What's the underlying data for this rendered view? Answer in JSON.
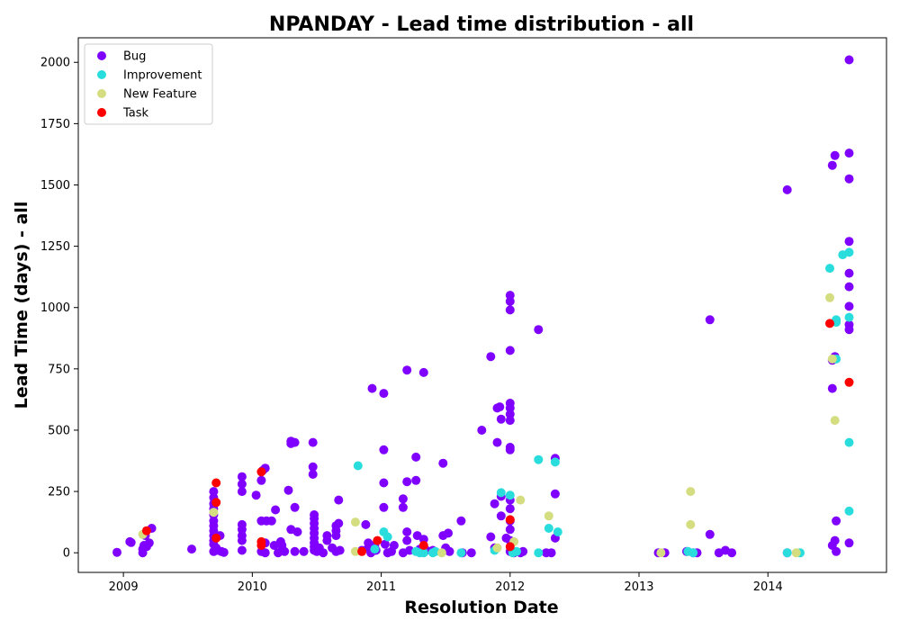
{
  "chart_data": {
    "type": "scatter",
    "title": "NPANDAY - Lead time distribution - all",
    "xlabel": "Resolution Date",
    "ylabel": "Lead Time (days) - all",
    "xlim": [
      2008.65,
      2014.92
    ],
    "ylim": [
      -80,
      2100
    ],
    "xticks": [
      2009,
      2010,
      2011,
      2012,
      2013,
      2014
    ],
    "yticks": [
      0,
      250,
      500,
      750,
      1000,
      1250,
      1500,
      1750,
      2000
    ],
    "grid": false,
    "legend_position": "top-left",
    "series": [
      {
        "name": "Bug",
        "color": "#8000ff",
        "points": [
          [
            2008.95,
            2
          ],
          [
            2009.05,
            45
          ],
          [
            2009.06,
            42
          ],
          [
            2009.15,
            15
          ],
          [
            2009.15,
            0
          ],
          [
            2009.16,
            30
          ],
          [
            2009.17,
            70
          ],
          [
            2009.18,
            25
          ],
          [
            2009.2,
            40
          ],
          [
            2009.22,
            100
          ],
          [
            2009.53,
            15
          ],
          [
            2009.7,
            250
          ],
          [
            2009.7,
            225
          ],
          [
            2009.7,
            200
          ],
          [
            2009.7,
            180
          ],
          [
            2009.7,
            155
          ],
          [
            2009.7,
            130
          ],
          [
            2009.7,
            110
          ],
          [
            2009.7,
            90
          ],
          [
            2009.7,
            70
          ],
          [
            2009.7,
            50
          ],
          [
            2009.7,
            35
          ],
          [
            2009.7,
            5
          ],
          [
            2009.72,
            20
          ],
          [
            2009.73,
            10
          ],
          [
            2009.75,
            70
          ],
          [
            2009.76,
            5
          ],
          [
            2009.78,
            2
          ],
          [
            2009.92,
            310
          ],
          [
            2009.92,
            280
          ],
          [
            2009.92,
            250
          ],
          [
            2009.92,
            115
          ],
          [
            2009.92,
            95
          ],
          [
            2009.92,
            70
          ],
          [
            2009.92,
            50
          ],
          [
            2009.92,
            10
          ],
          [
            2010.03,
            235
          ],
          [
            2010.07,
            295
          ],
          [
            2010.07,
            130
          ],
          [
            2010.07,
            5
          ],
          [
            2010.08,
            335
          ],
          [
            2010.1,
            345
          ],
          [
            2010.1,
            40
          ],
          [
            2010.1,
            0
          ],
          [
            2010.11,
            130
          ],
          [
            2010.15,
            130
          ],
          [
            2010.17,
            30
          ],
          [
            2010.18,
            175
          ],
          [
            2010.2,
            0
          ],
          [
            2010.22,
            45
          ],
          [
            2010.23,
            30
          ],
          [
            2010.23,
            10
          ],
          [
            2010.25,
            5
          ],
          [
            2010.28,
            255
          ],
          [
            2010.3,
            455
          ],
          [
            2010.3,
            445
          ],
          [
            2010.3,
            95
          ],
          [
            2010.33,
            450
          ],
          [
            2010.33,
            185
          ],
          [
            2010.33,
            5
          ],
          [
            2010.35,
            85
          ],
          [
            2010.4,
            5
          ],
          [
            2010.47,
            450
          ],
          [
            2010.47,
            350
          ],
          [
            2010.47,
            320
          ],
          [
            2010.48,
            155
          ],
          [
            2010.48,
            140
          ],
          [
            2010.48,
            120
          ],
          [
            2010.48,
            100
          ],
          [
            2010.48,
            80
          ],
          [
            2010.48,
            60
          ],
          [
            2010.48,
            40
          ],
          [
            2010.48,
            25
          ],
          [
            2010.48,
            10
          ],
          [
            2010.5,
            5
          ],
          [
            2010.52,
            20
          ],
          [
            2010.55,
            0
          ],
          [
            2010.58,
            70
          ],
          [
            2010.58,
            50
          ],
          [
            2010.62,
            20
          ],
          [
            2010.65,
            110
          ],
          [
            2010.65,
            90
          ],
          [
            2010.65,
            70
          ],
          [
            2010.65,
            5
          ],
          [
            2010.67,
            215
          ],
          [
            2010.67,
            120
          ],
          [
            2010.68,
            10
          ],
          [
            2010.85,
            10
          ],
          [
            2010.88,
            115
          ],
          [
            2010.9,
            40
          ],
          [
            2010.9,
            20
          ],
          [
            2010.92,
            0
          ],
          [
            2010.93,
            670
          ],
          [
            2010.95,
            30
          ],
          [
            2010.96,
            10
          ],
          [
            2011.02,
            650
          ],
          [
            2011.02,
            420
          ],
          [
            2011.02,
            285
          ],
          [
            2011.02,
            185
          ],
          [
            2011.03,
            35
          ],
          [
            2011.05,
            0
          ],
          [
            2011.08,
            5
          ],
          [
            2011.1,
            30
          ],
          [
            2011.17,
            220
          ],
          [
            2011.17,
            185
          ],
          [
            2011.17,
            0
          ],
          [
            2011.2,
            745
          ],
          [
            2011.2,
            290
          ],
          [
            2011.2,
            85
          ],
          [
            2011.2,
            50
          ],
          [
            2011.22,
            10
          ],
          [
            2011.27,
            390
          ],
          [
            2011.27,
            295
          ],
          [
            2011.28,
            70
          ],
          [
            2011.3,
            15
          ],
          [
            2011.33,
            735
          ],
          [
            2011.33,
            55
          ],
          [
            2011.35,
            10
          ],
          [
            2011.4,
            10
          ],
          [
            2011.48,
            365
          ],
          [
            2011.48,
            70
          ],
          [
            2011.5,
            20
          ],
          [
            2011.52,
            80
          ],
          [
            2011.53,
            5
          ],
          [
            2011.62,
            130
          ],
          [
            2011.63,
            0
          ],
          [
            2011.7,
            0
          ],
          [
            2011.78,
            500
          ],
          [
            2011.85,
            800
          ],
          [
            2011.85,
            65
          ],
          [
            2011.88,
            200
          ],
          [
            2011.88,
            20
          ],
          [
            2011.9,
            450
          ],
          [
            2011.9,
            590
          ],
          [
            2011.92,
            595
          ],
          [
            2011.93,
            545
          ],
          [
            2011.93,
            230
          ],
          [
            2011.93,
            150
          ],
          [
            2011.97,
            60
          ],
          [
            2012.0,
            1050
          ],
          [
            2012.0,
            1025
          ],
          [
            2012.0,
            990
          ],
          [
            2012.0,
            825
          ],
          [
            2012.0,
            610
          ],
          [
            2012.0,
            590
          ],
          [
            2012.0,
            565
          ],
          [
            2012.0,
            540
          ],
          [
            2012.0,
            430
          ],
          [
            2012.0,
            420
          ],
          [
            2012.0,
            215
          ],
          [
            2012.0,
            180
          ],
          [
            2012.0,
            130
          ],
          [
            2012.0,
            95
          ],
          [
            2012.0,
            50
          ],
          [
            2012.0,
            5
          ],
          [
            2012.03,
            0
          ],
          [
            2012.08,
            0
          ],
          [
            2012.1,
            5
          ],
          [
            2012.22,
            910
          ],
          [
            2012.28,
            0
          ],
          [
            2012.32,
            0
          ],
          [
            2012.35,
            240
          ],
          [
            2012.35,
            385
          ],
          [
            2012.35,
            60
          ],
          [
            2013.15,
            0
          ],
          [
            2013.2,
            0
          ],
          [
            2013.37,
            5
          ],
          [
            2013.42,
            0
          ],
          [
            2013.45,
            0
          ],
          [
            2013.55,
            950
          ],
          [
            2013.55,
            75
          ],
          [
            2013.62,
            0
          ],
          [
            2013.67,
            10
          ],
          [
            2013.72,
            0
          ],
          [
            2014.15,
            1480
          ],
          [
            2014.15,
            0
          ],
          [
            2014.5,
            1580
          ],
          [
            2014.52,
            1620
          ],
          [
            2014.5,
            785
          ],
          [
            2014.52,
            800
          ],
          [
            2014.5,
            670
          ],
          [
            2014.5,
            30
          ],
          [
            2014.52,
            50
          ],
          [
            2014.53,
            130
          ],
          [
            2014.53,
            5
          ],
          [
            2014.63,
            2010
          ],
          [
            2014.63,
            1630
          ],
          [
            2014.63,
            1525
          ],
          [
            2014.63,
            1270
          ],
          [
            2014.63,
            1140
          ],
          [
            2014.63,
            1085
          ],
          [
            2014.63,
            1005
          ],
          [
            2014.63,
            930
          ],
          [
            2014.63,
            910
          ],
          [
            2014.63,
            40
          ]
        ]
      },
      {
        "name": "Improvement",
        "color": "#2adddd",
        "points": [
          [
            2010.82,
            355
          ],
          [
            2010.95,
            15
          ],
          [
            2011.02,
            85
          ],
          [
            2011.05,
            65
          ],
          [
            2011.27,
            5
          ],
          [
            2011.3,
            0
          ],
          [
            2011.33,
            0
          ],
          [
            2011.4,
            0
          ],
          [
            2011.42,
            5
          ],
          [
            2011.62,
            0
          ],
          [
            2011.88,
            10
          ],
          [
            2011.93,
            245
          ],
          [
            2012.0,
            235
          ],
          [
            2012.02,
            0
          ],
          [
            2012.05,
            5
          ],
          [
            2012.22,
            380
          ],
          [
            2012.22,
            0
          ],
          [
            2012.3,
            100
          ],
          [
            2012.35,
            370
          ],
          [
            2012.37,
            85
          ],
          [
            2013.38,
            5
          ],
          [
            2013.42,
            0
          ],
          [
            2014.15,
            0
          ],
          [
            2014.25,
            0
          ],
          [
            2014.48,
            1160
          ],
          [
            2014.53,
            950
          ],
          [
            2014.53,
            940
          ],
          [
            2014.53,
            790
          ],
          [
            2014.58,
            1215
          ],
          [
            2014.63,
            1225
          ],
          [
            2014.63,
            960
          ],
          [
            2014.63,
            450
          ],
          [
            2014.63,
            170
          ]
        ]
      },
      {
        "name": "New Feature",
        "color": "#d4dd80",
        "points": [
          [
            2009.15,
            75
          ],
          [
            2009.7,
            165
          ],
          [
            2010.8,
            125
          ],
          [
            2010.8,
            5
          ],
          [
            2011.47,
            0
          ],
          [
            2011.9,
            20
          ],
          [
            2012.03,
            45
          ],
          [
            2012.08,
            215
          ],
          [
            2012.3,
            150
          ],
          [
            2013.17,
            0
          ],
          [
            2013.4,
            250
          ],
          [
            2013.4,
            115
          ],
          [
            2014.22,
            0
          ],
          [
            2014.48,
            1040
          ],
          [
            2014.5,
            790
          ],
          [
            2014.52,
            540
          ]
        ]
      },
      {
        "name": "Task",
        "color": "#ff0000",
        "points": [
          [
            2009.18,
            90
          ],
          [
            2009.72,
            285
          ],
          [
            2009.72,
            205
          ],
          [
            2009.72,
            60
          ],
          [
            2010.07,
            330
          ],
          [
            2010.07,
            45
          ],
          [
            2010.07,
            30
          ],
          [
            2010.85,
            5
          ],
          [
            2010.97,
            50
          ],
          [
            2011.33,
            30
          ],
          [
            2012.0,
            135
          ],
          [
            2012.0,
            25
          ],
          [
            2014.48,
            935
          ],
          [
            2014.63,
            695
          ]
        ]
      }
    ]
  }
}
